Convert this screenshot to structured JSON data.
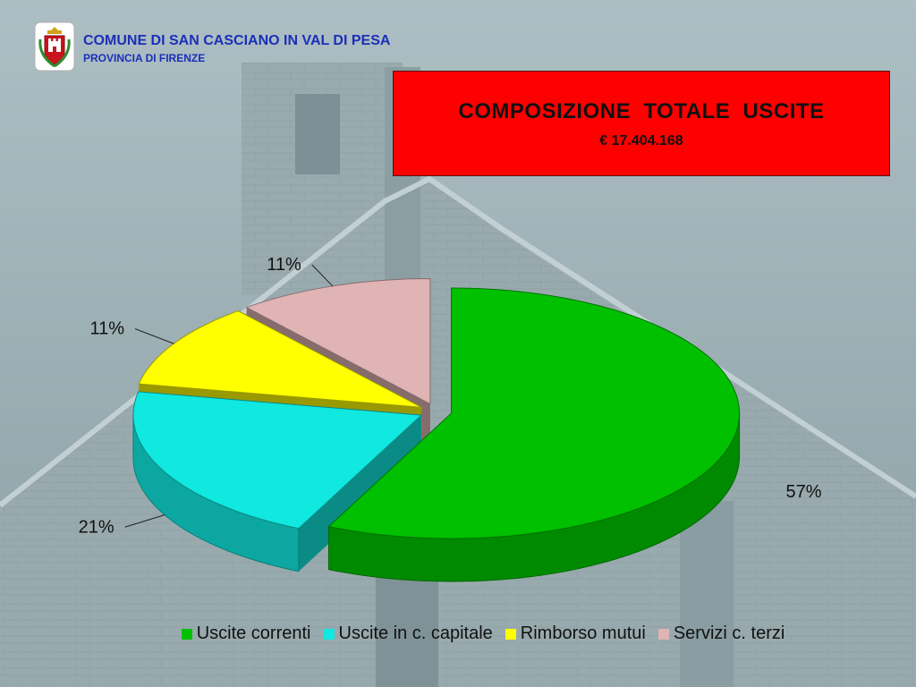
{
  "header": {
    "org_name": "COMUNE DI SAN CASCIANO IN VAL DI PESA",
    "province": "PROVINCIA  DI FIRENZE",
    "logo_icon": "coat-of-arms-icon"
  },
  "title_box": {
    "title": "COMPOSIZIONE  TOTALE  USCITE",
    "total": "€ 17.404.168",
    "background": "#ff0000"
  },
  "chart_data": {
    "type": "pie",
    "style": "3d-exploded",
    "categories": [
      "Uscite correnti",
      "Uscite in c. capitale",
      "Rimborso mutui",
      "Servizi c. terzi"
    ],
    "values": [
      57,
      21,
      11,
      11
    ],
    "labels": [
      "57%",
      "21%",
      "11%",
      "11%"
    ],
    "colors": [
      "#00c000",
      "#10e8e0",
      "#ffff00",
      "#e0b4b4"
    ],
    "legend_position": "bottom",
    "title": "COMPOSIZIONE  TOTALE  USCITE"
  },
  "colors": {
    "header_text": "#1b2fb8",
    "title_box": "#ff0000"
  }
}
